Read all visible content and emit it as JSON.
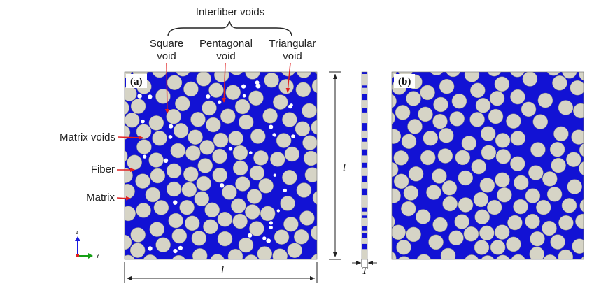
{
  "figure": {
    "colors": {
      "matrix": "#1212d4",
      "fiber": "#d6d4c6",
      "fiber_edge": "#8f8f86",
      "void": "#ffffff",
      "arrow": "#e02020",
      "ink": "#222222"
    },
    "top_label": "Interfiber voids",
    "void_labels": {
      "square": [
        "Square",
        "void"
      ],
      "pentagonal": [
        "Pentagonal",
        "void"
      ],
      "triangular": [
        "Triangular",
        "void"
      ]
    },
    "left_labels": {
      "matrix_voids": "Matrix voids",
      "fiber": "Fiber",
      "matrix": "Matrix"
    },
    "panels": {
      "a": "(a)",
      "b": "(b)"
    },
    "dimensions": {
      "side_length": "l",
      "height": "l",
      "thickness": "T"
    },
    "axes": {
      "vertical": "z",
      "horizontal": "Y"
    }
  }
}
